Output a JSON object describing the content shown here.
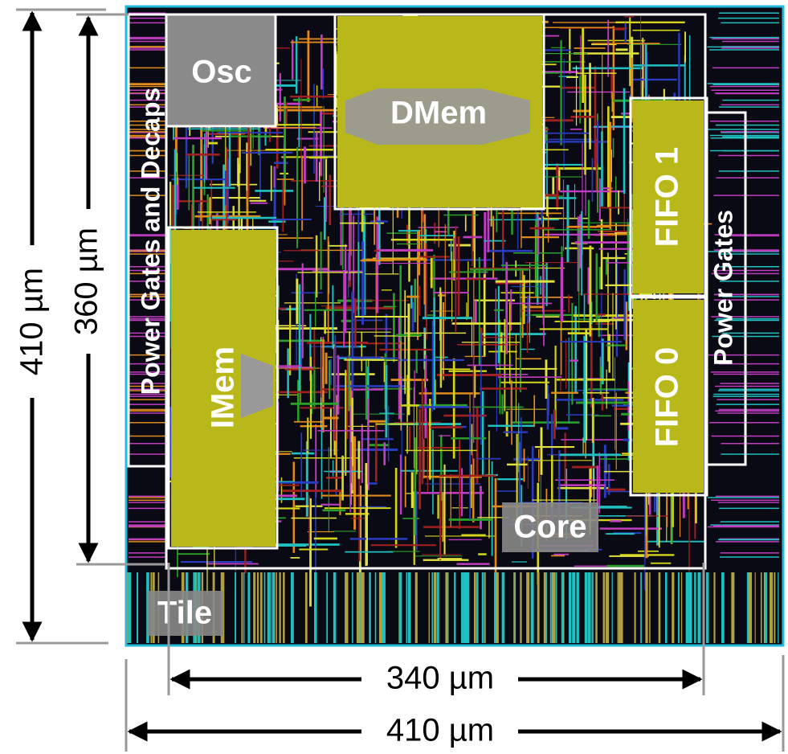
{
  "blocks": [
    {
      "label": "Osc"
    },
    {
      "label": "DMem"
    },
    {
      "label": "IMem"
    },
    {
      "label": "FIFO 1"
    },
    {
      "label": "FIFO 0"
    },
    {
      "label": "Power Gates and Decaps"
    },
    {
      "label": "Power Gates"
    },
    {
      "label": "Core"
    },
    {
      "label": "Tile"
    }
  ],
  "dimensions": [
    {
      "label": "410 µm"
    },
    {
      "label": "360 µm"
    },
    {
      "label": "340 µm"
    },
    {
      "label": "410 µm"
    }
  ]
}
